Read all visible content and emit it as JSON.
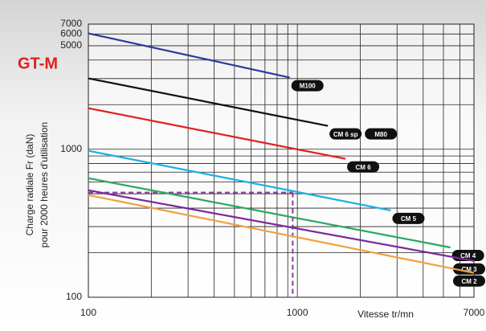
{
  "chart_data": {
    "type": "line",
    "title": "GT-M",
    "y_label": [
      "Charge radiale Fr (daN)",
      "pour 2000 heures d'utilisation"
    ],
    "x_label": "Vitesse tr/mn",
    "log_x": true,
    "log_y": true,
    "grid": true,
    "xlim": [
      100,
      7000
    ],
    "ylim": [
      100,
      7000
    ],
    "xticks": [
      100,
      1000,
      7000
    ],
    "yticks": [
      100,
      1000,
      5000,
      6000,
      7000
    ],
    "xgrid": [
      100,
      200,
      300,
      400,
      500,
      600,
      700,
      800,
      900,
      1000,
      2000,
      3000,
      4000,
      5000,
      6000,
      7000
    ],
    "ygrid": [
      100,
      200,
      300,
      400,
      500,
      600,
      700,
      800,
      900,
      1000,
      2000,
      3000,
      4000,
      5000,
      6000,
      7000
    ],
    "series": [
      {
        "name": "M100",
        "color": "#2b3b9a",
        "x": [
          100,
          920
        ],
        "values": [
          6060,
          3046
        ]
      },
      {
        "name": "CM 6 sp",
        "color": "#111111",
        "x": [
          100,
          1400
        ],
        "values": [
          3010,
          1438
        ]
      },
      {
        "name": "CM 6",
        "color": "#e02020",
        "x": [
          100,
          1700
        ],
        "values": [
          1893,
          861
        ]
      },
      {
        "name": "CM 5",
        "color": "#1ab0e8",
        "x": [
          100,
          2800
        ],
        "values": [
          976,
          386
        ]
      },
      {
        "name": "CM 4",
        "color": "#2aa860",
        "x": [
          100,
          5400
        ],
        "values": [
          637,
          217
        ]
      },
      {
        "name": "CM 3",
        "color": "#7a2a9a",
        "x": [
          100,
          7000
        ],
        "values": [
          528,
          176
        ]
      },
      {
        "name": "CM 2",
        "color": "#f2a040",
        "x": [
          100,
          7000
        ],
        "values": [
          490,
          146
        ]
      }
    ],
    "annotation": "M80",
    "guide": {
      "x": 950,
      "y": 510,
      "color": "#8a3aa0"
    }
  }
}
